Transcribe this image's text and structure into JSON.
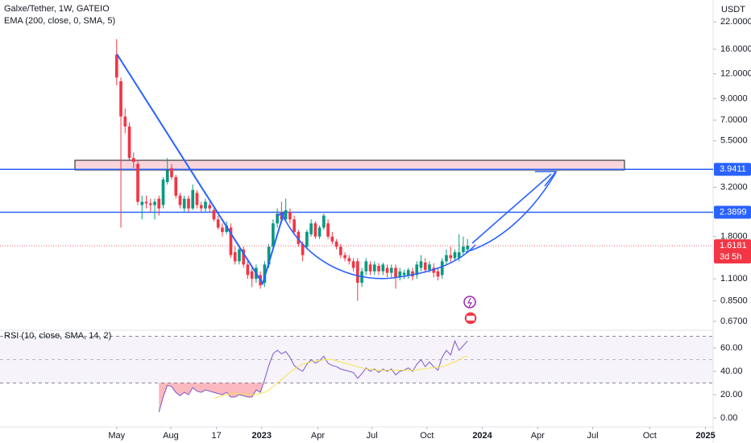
{
  "chart_data": {
    "type": "candlestick",
    "title": "Galxe/Tether, 1W, GATEIO",
    "indicator": "EMA (200, close, 0, SMA, 5)",
    "currency": "USDT",
    "log_scale": true,
    "up_color": "#089981",
    "down_color": "#f23645",
    "x": [
      0,
      1,
      2,
      3,
      4,
      5,
      6,
      7,
      8,
      9,
      10,
      11,
      12,
      13,
      14,
      15,
      16,
      17,
      18,
      19,
      20,
      21,
      22,
      23,
      24,
      25,
      26,
      27,
      28,
      29,
      30,
      31,
      32,
      33,
      34,
      35,
      36,
      37,
      38,
      39,
      40,
      41,
      42,
      43,
      44,
      45,
      46,
      47,
      48,
      49,
      50,
      51,
      52,
      53,
      54,
      55,
      56,
      57,
      58,
      59,
      60,
      61,
      62,
      63,
      64,
      65,
      66,
      67,
      68,
      69,
      70,
      71,
      72,
      73,
      74,
      75,
      76,
      77,
      78,
      79,
      80,
      81,
      82,
      83
    ],
    "open": [
      15,
      11,
      7.3,
      6.5,
      4.5,
      4.2,
      2.6,
      2.7,
      2.65,
      2.6,
      2.8,
      2.6,
      3.4,
      4.0,
      3.6,
      2.9,
      2.5,
      2.8,
      2.5,
      3.0,
      2.6,
      2.5,
      2.6,
      2.45,
      2.2,
      2.0,
      1.9,
      2.0,
      1.5,
      1.35,
      1.55,
      1.3,
      1.2,
      1.1,
      1.15,
      1.05,
      1.3,
      1.6,
      2.1,
      2.4,
      2.2,
      2.4,
      2.2,
      1.9,
      1.65,
      1.6,
      1.85,
      2.1,
      1.8,
      2.0,
      2.1,
      1.8,
      1.7,
      1.6,
      1.45,
      1.4,
      1.35,
      1.35,
      1.05,
      1.2,
      1.3,
      1.2,
      1.28,
      1.2,
      1.25,
      1.18,
      1.25,
      1.12,
      1.15,
      1.15,
      1.2,
      1.15,
      1.25,
      1.33,
      1.22,
      1.25,
      1.2,
      1.15,
      1.35,
      1.45,
      1.4,
      1.4,
      1.5,
      1.55
    ],
    "high": [
      18,
      11.5,
      8,
      6.8,
      4.8,
      4.4,
      2.9,
      2.9,
      2.8,
      2.8,
      2.9,
      3.6,
      4.5,
      4.2,
      3.7,
      3.0,
      2.9,
      2.9,
      3.3,
      3.1,
      2.7,
      2.8,
      2.7,
      2.5,
      2.3,
      2.1,
      2.15,
      2.1,
      1.6,
      1.6,
      1.6,
      1.35,
      1.25,
      1.3,
      1.2,
      1.35,
      1.65,
      2.2,
      2.5,
      2.7,
      2.8,
      2.5,
      2.3,
      1.95,
      1.7,
      1.95,
      2.2,
      2.15,
      2.05,
      2.35,
      2.2,
      1.9,
      1.75,
      1.65,
      1.5,
      1.45,
      1.4,
      1.4,
      1.25,
      1.4,
      1.35,
      1.35,
      1.32,
      1.33,
      1.3,
      1.3,
      1.3,
      1.25,
      1.22,
      1.25,
      1.25,
      1.35,
      1.45,
      1.4,
      1.35,
      1.32,
      1.25,
      1.4,
      1.55,
      1.6,
      1.55,
      1.85,
      1.8,
      1.75
    ],
    "low": [
      10.5,
      2.0,
      6.0,
      4.4,
      4.0,
      2.6,
      2.2,
      2.5,
      2.4,
      2.2,
      2.3,
      2.5,
      3.3,
      3.5,
      2.8,
      2.5,
      2.4,
      2.4,
      2.45,
      2.5,
      2.4,
      2.4,
      2.4,
      2.15,
      1.95,
      1.8,
      1.85,
      1.4,
      1.3,
      1.3,
      1.25,
      1.1,
      1.0,
      1.05,
      0.98,
      1.0,
      1.25,
      1.55,
      2.0,
      2.1,
      2.15,
      2.1,
      1.85,
      1.6,
      1.35,
      1.55,
      1.8,
      1.75,
      1.75,
      1.95,
      1.75,
      1.65,
      1.55,
      1.4,
      1.35,
      1.3,
      1.2,
      0.85,
      1.0,
      1.15,
      1.15,
      1.15,
      1.15,
      1.15,
      1.12,
      1.12,
      0.98,
      1.08,
      1.1,
      1.1,
      1.08,
      1.1,
      1.2,
      1.18,
      1.18,
      1.12,
      1.08,
      1.1,
      1.3,
      1.33,
      1.35,
      1.35,
      1.45,
      1.5
    ],
    "close": [
      11.5,
      7.3,
      6.5,
      4.5,
      4.3,
      2.7,
      2.7,
      2.65,
      2.6,
      2.7,
      2.5,
      3.5,
      3.9,
      3.6,
      2.9,
      2.6,
      2.8,
      2.5,
      3.1,
      2.6,
      2.5,
      2.7,
      2.5,
      2.2,
      2.0,
      1.9,
      2.05,
      1.45,
      1.35,
      1.55,
      1.3,
      1.15,
      1.1,
      1.25,
      1.02,
      1.3,
      1.6,
      2.1,
      2.35,
      2.2,
      2.45,
      2.2,
      1.9,
      1.65,
      1.45,
      1.9,
      2.1,
      1.8,
      2.0,
      2.3,
      1.8,
      1.7,
      1.6,
      1.45,
      1.4,
      1.35,
      1.25,
      1.05,
      1.2,
      1.35,
      1.2,
      1.3,
      1.2,
      1.3,
      1.18,
      1.25,
      1.12,
      1.2,
      1.18,
      1.22,
      1.13,
      1.3,
      1.35,
      1.22,
      1.3,
      1.18,
      1.13,
      1.35,
      1.45,
      1.4,
      1.5,
      1.5,
      1.6,
      1.6181
    ],
    "xlim": [
      -27.6,
      141.1
    ],
    "xticks": [
      {
        "value": 0,
        "label": "May"
      },
      {
        "value": 12.8,
        "label": "Aug"
      },
      {
        "value": 23.6,
        "label": "17"
      },
      {
        "value": 34.3,
        "label": "2023"
      },
      {
        "value": 47.6,
        "label": "Apr"
      },
      {
        "value": 60.4,
        "label": "Jul"
      },
      {
        "value": 73.4,
        "label": "Oct"
      },
      {
        "value": 86.5,
        "label": "2024"
      },
      {
        "value": 99.6,
        "label": "Apr"
      },
      {
        "value": 112.6,
        "label": "Jul"
      },
      {
        "value": 126.1,
        "label": "Oct"
      },
      {
        "value": 139.3,
        "label": "2025"
      }
    ],
    "ylim": [
      0.604,
      28.4
    ],
    "yticks": [
      {
        "value": 22,
        "label": "22.0000"
      },
      {
        "value": 16,
        "label": "16.0000"
      },
      {
        "value": 12,
        "label": "12.0000"
      },
      {
        "value": 9,
        "label": "9.0000"
      },
      {
        "value": 7,
        "label": "7.0000"
      },
      {
        "value": 5.5,
        "label": "5.5000"
      },
      {
        "value": 3.2,
        "label": "3.2000"
      },
      {
        "value": 1.8,
        "label": "1.8000"
      },
      {
        "value": 1.1,
        "label": "1.1000"
      },
      {
        "value": 0.85,
        "label": "0.8500"
      },
      {
        "value": 0.67,
        "label": "0.6700"
      }
    ],
    "levels": [
      {
        "value": 3.9411,
        "color": "#2962ff"
      },
      {
        "value": 2.3899,
        "color": "#2962ff"
      }
    ],
    "last_price": {
      "value": 1.6181,
      "countdown": "3d 5h",
      "color": "#f23645"
    },
    "rsi": {
      "type": "line",
      "title": "RSI (10, close, SMA, 14, 2)",
      "ylim": [
        -7.6,
        75.2
      ],
      "yticks": [
        {
          "value": 0,
          "label": "0.00"
        },
        {
          "value": 20,
          "label": "20.00"
        },
        {
          "value": 40,
          "label": "40.00"
        },
        {
          "value": 60,
          "label": "60.00"
        }
      ],
      "bands": [
        30,
        50,
        70
      ],
      "series": [
        {
          "color": "#7e57c2",
          "values": [
            null,
            null,
            null,
            null,
            null,
            null,
            null,
            null,
            null,
            null,
            5,
            18,
            28,
            27,
            22,
            19,
            22,
            20,
            26,
            23,
            22,
            24,
            23,
            22,
            21,
            20,
            22,
            18,
            18,
            20,
            19,
            18,
            18,
            24,
            22,
            33,
            45,
            55,
            58,
            55,
            57,
            52,
            45,
            42,
            40,
            46,
            50,
            47,
            49,
            53,
            47,
            45,
            44,
            42,
            41,
            40,
            39,
            34,
            38,
            43,
            40,
            42,
            39,
            42,
            40,
            42,
            37,
            40,
            41,
            43,
            40,
            46,
            50,
            44,
            48,
            44,
            41,
            52,
            58,
            54,
            66,
            58,
            62,
            66
          ]
        },
        {
          "color": "#f5e34a",
          "values": [
            null,
            null,
            null,
            null,
            null,
            null,
            null,
            null,
            null,
            null,
            null,
            null,
            null,
            null,
            null,
            null,
            null,
            null,
            null,
            null,
            null,
            null,
            null,
            17,
            18,
            19,
            20,
            21,
            21,
            21,
            20,
            20,
            20,
            20,
            21,
            22,
            24,
            27,
            30,
            33,
            36,
            39,
            42,
            44,
            46,
            47,
            48,
            49,
            49,
            50,
            50,
            50,
            49,
            48,
            47,
            46,
            45,
            44,
            43,
            42,
            42,
            41,
            41,
            41,
            41,
            41,
            41,
            41,
            41,
            41,
            41,
            41,
            42,
            42,
            43,
            43,
            44,
            44,
            45,
            47,
            48,
            50,
            52,
            53
          ]
        }
      ]
    }
  }
}
